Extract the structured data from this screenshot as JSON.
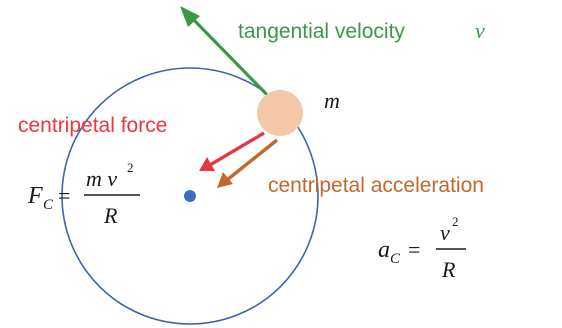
{
  "labels": {
    "tangential_velocity": "tangential velocity",
    "velocity_symbol": "v",
    "centripetal_force": "centripetal force",
    "mass_symbol": "m",
    "centripetal_acceleration": "centripetal acceleration"
  },
  "formulas": {
    "force": {
      "lhs_symbol": "F",
      "lhs_subscript": "C",
      "equals": "=",
      "numerator": "m v",
      "exponent": "2",
      "denominator": "R"
    },
    "acceleration": {
      "lhs_symbol": "a",
      "lhs_subscript": "C",
      "equals": "=",
      "numerator": "v",
      "exponent": "2",
      "denominator": "R"
    }
  },
  "colors": {
    "velocity": "#3a9a44",
    "force": "#e8383f",
    "acceleration": "#c0692a",
    "orbit": "#3e63ad",
    "center": "#3c6fc3",
    "mass": "#f4c7a7",
    "text": "#1a1a1a"
  }
}
